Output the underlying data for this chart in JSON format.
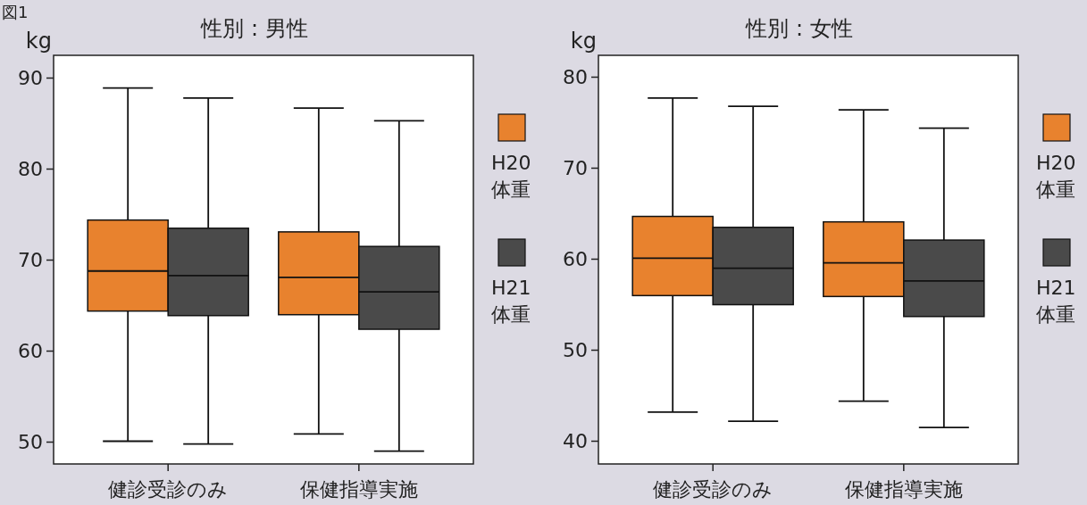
{
  "chart_data": [
    {
      "type": "box",
      "title": "性別 : 男性",
      "ylabel": "kg",
      "annotations": [
        "図1"
      ],
      "categories": [
        "健診受診のみ",
        "保健指導実施"
      ],
      "ylim": [
        47.6,
        92.5
      ],
      "yticks": [
        50,
        60,
        70,
        80,
        90
      ],
      "legend": "right",
      "grid": false,
      "series": [
        {
          "name": "H20 体重",
          "color": "#e8822e",
          "boxes": [
            {
              "low": 50.1,
              "q1": 64.4,
              "median": 68.8,
              "q3": 74.4,
              "high": 88.9
            },
            {
              "low": 50.9,
              "q1": 64.0,
              "median": 68.1,
              "q3": 73.1,
              "high": 86.7
            }
          ]
        },
        {
          "name": "H21 体重",
          "color": "#4a4a4a",
          "boxes": [
            {
              "low": 49.8,
              "q1": 63.9,
              "median": 68.3,
              "q3": 73.5,
              "high": 87.8
            },
            {
              "low": 49.0,
              "q1": 62.4,
              "median": 66.5,
              "q3": 71.5,
              "high": 85.3
            }
          ]
        }
      ]
    },
    {
      "type": "box",
      "title": "性別 : 女性",
      "ylabel": "kg",
      "categories": [
        "健診受診のみ",
        "保健指導実施"
      ],
      "ylim": [
        37.5,
        82.4
      ],
      "yticks": [
        40,
        50,
        60,
        70,
        80
      ],
      "legend": "right",
      "grid": false,
      "series": [
        {
          "name": "H20 体重",
          "color": "#e8822e",
          "boxes": [
            {
              "low": 43.2,
              "q1": 56.0,
              "median": 60.1,
              "q3": 64.7,
              "high": 77.7
            },
            {
              "low": 44.4,
              "q1": 55.9,
              "median": 59.6,
              "q3": 64.1,
              "high": 76.4
            }
          ]
        },
        {
          "name": "H21 体重",
          "color": "#4a4a4a",
          "boxes": [
            {
              "low": 42.2,
              "q1": 55.0,
              "median": 59.0,
              "q3": 63.5,
              "high": 76.8
            },
            {
              "low": 41.5,
              "q1": 53.7,
              "median": 57.6,
              "q3": 62.1,
              "high": 74.4
            }
          ]
        }
      ]
    }
  ]
}
